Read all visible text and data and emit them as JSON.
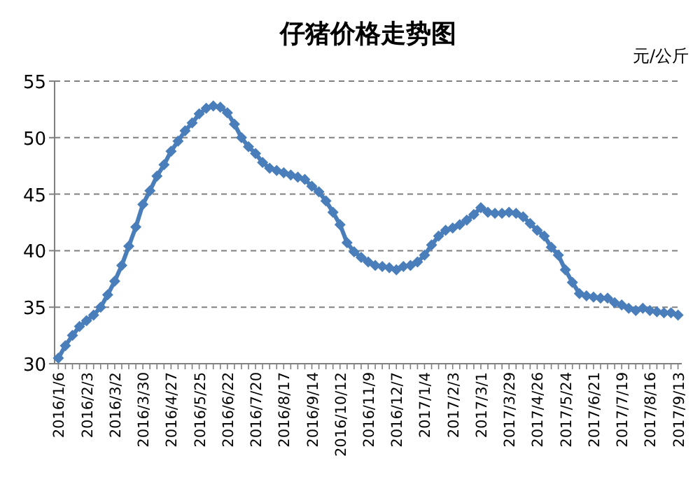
{
  "chart_data": {
    "type": "line",
    "title": "仔猪价格走势图",
    "ylabel": "元/公斤",
    "categories": [
      "2016/1/6",
      null,
      null,
      null,
      "2016/2/3",
      null,
      null,
      null,
      "2016/3/2",
      null,
      null,
      null,
      "2016/3/30",
      null,
      null,
      null,
      "2016/4/27",
      null,
      null,
      null,
      "2016/5/25",
      null,
      null,
      null,
      "2016/6/22",
      null,
      null,
      null,
      "2016/7/20",
      null,
      null,
      null,
      "2016/8/17",
      null,
      null,
      null,
      "2016/9/14",
      null,
      null,
      null,
      "2016/10/12",
      null,
      null,
      null,
      "2016/11/9",
      null,
      null,
      null,
      "2016/12/7",
      null,
      null,
      null,
      "2017/1/4",
      null,
      null,
      null,
      "2017/2/3",
      null,
      null,
      null,
      "2017/3/1",
      null,
      null,
      null,
      "2017/3/29",
      null,
      null,
      null,
      "2017/4/26",
      null,
      null,
      null,
      "2017/5/24",
      null,
      null,
      null,
      "2017/6/21",
      null,
      null,
      null,
      "2017/7/19",
      null,
      null,
      null,
      "2017/8/16",
      null,
      null,
      null,
      "2017/9/13"
    ],
    "values": [
      30.5,
      31.6,
      32.5,
      33.3,
      33.8,
      34.3,
      35.0,
      36.1,
      37.3,
      38.7,
      40.4,
      42.1,
      44.1,
      45.3,
      46.6,
      47.6,
      48.8,
      49.7,
      50.6,
      51.3,
      52.1,
      52.6,
      52.8,
      52.7,
      52.2,
      51.2,
      50.0,
      49.2,
      48.6,
      47.8,
      47.3,
      47.1,
      46.9,
      46.7,
      46.5,
      46.3,
      45.7,
      45.2,
      44.4,
      43.4,
      42.3,
      40.7,
      39.9,
      39.4,
      39.0,
      38.7,
      38.6,
      38.5,
      38.3,
      38.6,
      38.7,
      39.0,
      39.6,
      40.5,
      41.3,
      41.8,
      42.0,
      42.3,
      42.7,
      43.2,
      43.8,
      43.4,
      43.3,
      43.3,
      43.4,
      43.3,
      43.0,
      42.4,
      41.8,
      41.3,
      40.3,
      39.6,
      38.3,
      37.2,
      36.2,
      36.0,
      35.9,
      35.8,
      35.8,
      35.4,
      35.2,
      34.9,
      34.7,
      34.9,
      34.7,
      34.6,
      34.5,
      34.5,
      34.3
    ],
    "color": "#4a7ebb",
    "ylim": [
      30,
      55
    ],
    "yticks": [
      30,
      35,
      40,
      45,
      50,
      55
    ],
    "grid": "y",
    "line_style": "solid",
    "marker": "diamond"
  }
}
